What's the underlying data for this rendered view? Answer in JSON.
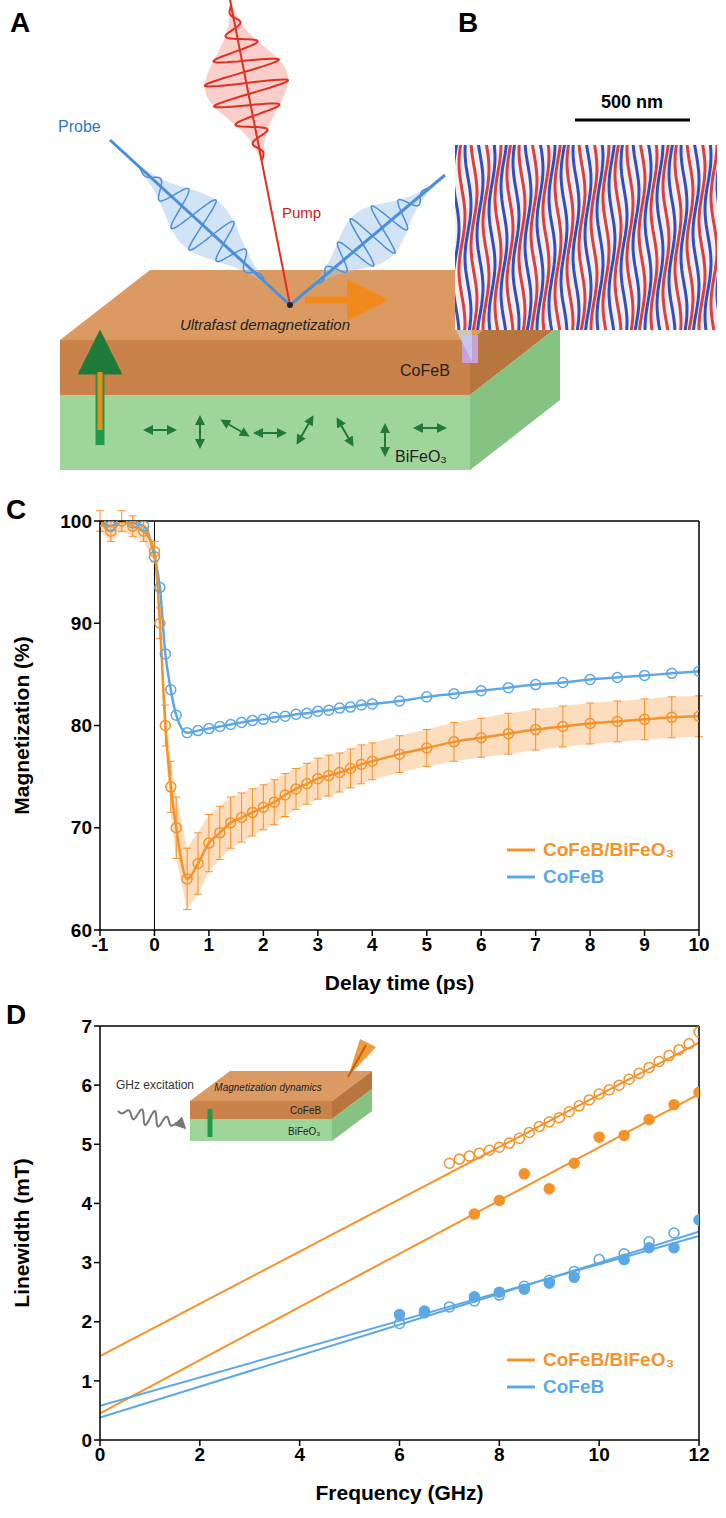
{
  "diagram": {
    "panel_a": {
      "letter": "A",
      "pump": "Pump",
      "probe": "Probe",
      "top_label": "Ultrafast demagnetization",
      "layer_top": "CoFeB",
      "layer_bottom": "BiFeO₃"
    },
    "panel_b": {
      "letter": "B",
      "scale_bar": "500 nm"
    }
  },
  "chart_data": [
    {
      "panel": "C",
      "type": "line",
      "x_label": "Delay time (ps)",
      "y_label": "Magnetization (%)",
      "xlim": [
        -1,
        10
      ],
      "xticks": [
        -1,
        0,
        1,
        2,
        3,
        4,
        5,
        6,
        7,
        8,
        9,
        10
      ],
      "ylim": [
        60,
        100
      ],
      "yticks": [
        60,
        70,
        80,
        90,
        100
      ],
      "vline": 0,
      "legend": "lower right",
      "x": [
        -1,
        -0.8,
        -0.6,
        -0.4,
        -0.2,
        0,
        0.1,
        0.2,
        0.3,
        0.4,
        0.6,
        0.8,
        1,
        1.2,
        1.4,
        1.6,
        1.8,
        2,
        2.2,
        2.4,
        2.6,
        2.8,
        3,
        3.2,
        3.4,
        3.6,
        3.8,
        4,
        4.5,
        5,
        5.5,
        6,
        6.5,
        7,
        7.5,
        8,
        8.5,
        9,
        9.5,
        10
      ],
      "series": [
        {
          "name": "CoFeB/BiFeO₃",
          "color": "#f5922a",
          "marker": "open_circle",
          "values": [
            100,
            99,
            100,
            99.5,
            99,
            97,
            90,
            80,
            74,
            70,
            65,
            66.5,
            68.5,
            69.5,
            70.5,
            71,
            71.5,
            72,
            72.5,
            73.2,
            73.8,
            74.3,
            74.8,
            75.1,
            75.4,
            75.8,
            76.2,
            76.5,
            77.2,
            77.8,
            78.4,
            78.8,
            79.2,
            79.6,
            79.9,
            80.2,
            80.4,
            80.6,
            80.8,
            80.9
          ],
          "errors": [
            1,
            1,
            1,
            1,
            1,
            1,
            1.5,
            2,
            2.5,
            3,
            3,
            3,
            2.8,
            2.6,
            2.5,
            2.4,
            2.3,
            2.2,
            2.2,
            2.1,
            2,
            2,
            2,
            2,
            1.9,
            1.9,
            1.9,
            1.8,
            1.8,
            1.8,
            1.9,
            1.9,
            2,
            2,
            2,
            2,
            2,
            2,
            2,
            2
          ]
        },
        {
          "name": "CoFeB",
          "color": "#5ca8e6",
          "marker": "open_circle",
          "values": [
            100,
            99.5,
            100,
            99.8,
            99.5,
            96.5,
            93.5,
            87,
            83.5,
            81,
            79.3,
            79.5,
            79.7,
            79.9,
            80.1,
            80.3,
            80.5,
            80.6,
            80.8,
            80.9,
            81.1,
            81.2,
            81.4,
            81.5,
            81.7,
            81.8,
            82,
            82.1,
            82.4,
            82.8,
            83.1,
            83.4,
            83.7,
            84,
            84.2,
            84.5,
            84.7,
            84.9,
            85.1,
            85.3
          ]
        }
      ]
    },
    {
      "panel": "D",
      "type": "scatter",
      "x_label": "Frequency (GHz)",
      "y_label": "Linewidth (mT)",
      "xlim": [
        0,
        12
      ],
      "xticks": [
        0,
        2,
        4,
        6,
        8,
        10,
        12
      ],
      "ylim": [
        0,
        7
      ],
      "yticks": [
        0,
        1,
        2,
        3,
        4,
        5,
        6,
        7
      ],
      "legend": "lower right",
      "inset": {
        "source": "GHz excitation",
        "top_label": "Magnetization dynamics",
        "layer_top": "CoFeB",
        "layer_bottom": "BiFeO₃"
      },
      "series": [
        {
          "name": "CoFeB/BiFeO₃",
          "color": "#f5922a",
          "marker": "open_circle",
          "x": [
            7,
            7.2,
            7.4,
            7.6,
            7.8,
            8,
            8.2,
            8.4,
            8.6,
            8.8,
            9,
            9.2,
            9.4,
            9.6,
            9.8,
            10,
            10.2,
            10.4,
            10.6,
            10.8,
            11,
            11.2,
            11.4,
            11.6,
            11.8,
            12
          ],
          "values": [
            4.68,
            4.75,
            4.8,
            4.85,
            4.9,
            4.95,
            5.02,
            5.1,
            5.2,
            5.3,
            5.38,
            5.45,
            5.55,
            5.65,
            5.75,
            5.85,
            5.92,
            6.0,
            6.1,
            6.2,
            6.3,
            6.4,
            6.5,
            6.6,
            6.7,
            6.9
          ],
          "fit_x": [
            0,
            12
          ],
          "fit_values": [
            1.42,
            6.72
          ]
        },
        {
          "name": "CoFeB/BiFeO₃",
          "color": "#f5922a",
          "marker": "circle",
          "x": [
            7.5,
            8,
            8.5,
            9,
            9.5,
            10,
            10.5,
            11,
            11.5,
            12
          ],
          "values": [
            3.82,
            4.05,
            4.5,
            4.25,
            4.68,
            5.12,
            5.15,
            5.42,
            5.67,
            5.88
          ],
          "fit_x": [
            0,
            12
          ],
          "fit_values": [
            0.45,
            5.85
          ]
        },
        {
          "name": "CoFeB",
          "color": "#5ca8e6",
          "marker": "open_circle",
          "x": [
            6,
            6.5,
            7,
            7.5,
            8,
            8.5,
            9,
            9.5,
            10,
            10.5,
            11,
            11.5
          ],
          "values": [
            1.97,
            2.15,
            2.25,
            2.35,
            2.45,
            2.6,
            2.7,
            2.85,
            3.05,
            3.15,
            3.35,
            3.5
          ],
          "fit_x": [
            0,
            12
          ],
          "fit_values": [
            0.38,
            3.52
          ]
        },
        {
          "name": "CoFeB",
          "color": "#5ca8e6",
          "marker": "circle",
          "x": [
            6,
            6.5,
            7.5,
            8,
            8.5,
            9,
            9.5,
            10.5,
            11,
            11.5,
            12
          ],
          "values": [
            2.12,
            2.18,
            2.42,
            2.5,
            2.55,
            2.65,
            2.75,
            3.05,
            3.25,
            3.25,
            3.72
          ],
          "fit_x": [
            0,
            12
          ],
          "fit_values": [
            0.58,
            3.45
          ]
        }
      ]
    }
  ]
}
